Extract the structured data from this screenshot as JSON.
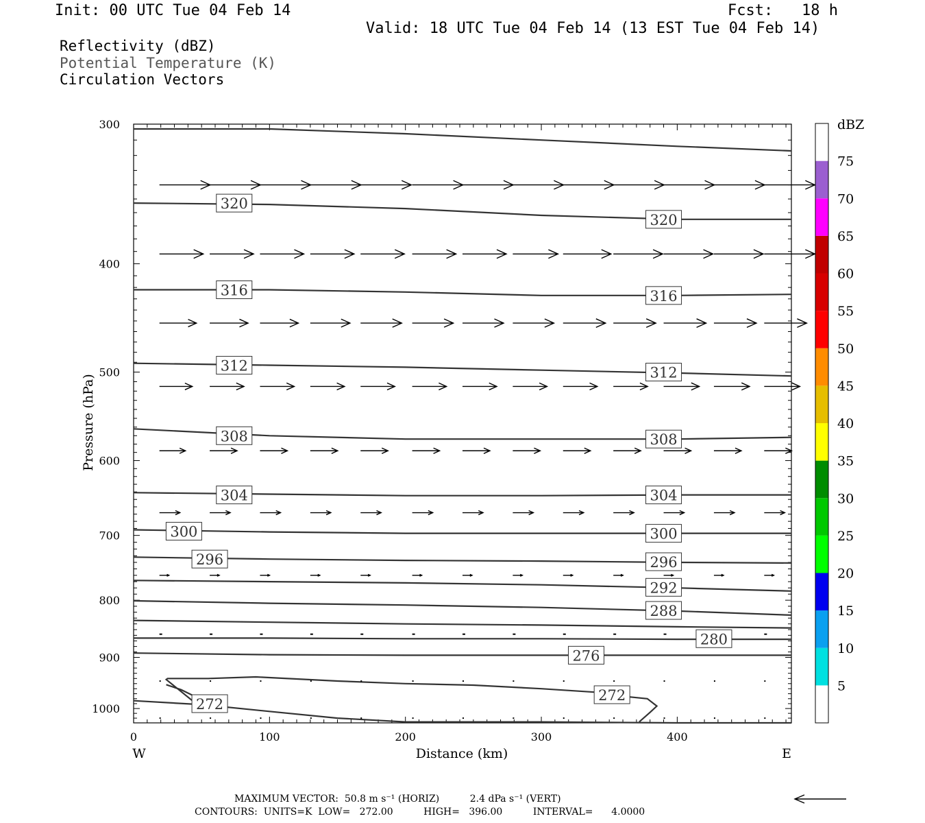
{
  "header": {
    "init": "Init: 00 UTC Tue 04 Feb 14",
    "fcst_label": "Fcst:",
    "fcst_value": "18 h",
    "valid": "Valid: 18 UTC Tue 04 Feb 14 (13 EST Tue 04 Feb 14)"
  },
  "legend": {
    "line1": "Reflectivity (dBZ)",
    "line2": "Potential Temperature (K)",
    "line3": "Circulation Vectors"
  },
  "footer": {
    "line1": "MAXIMUM VECTOR:  50.8 m s⁻¹ (HORIZ)          2.4 dPa s⁻¹ (VERT)",
    "line2": "CONTOURS:  UNITS=K  LOW=   272.00          HIGH=   396.00          INTERVAL=      4.0000"
  },
  "chart_data": {
    "type": "line",
    "xlabel": "Distance (km)",
    "ylabel": "Pressure (hPa)",
    "xlim": [
      0,
      484
    ],
    "ylim": [
      1030,
      300
    ],
    "y_scale": "log",
    "x_ticks": [
      0,
      100,
      200,
      300,
      400
    ],
    "y_ticks": [
      300,
      400,
      500,
      600,
      700,
      800,
      900,
      1000
    ],
    "x_end_labels": {
      "left": "W",
      "right": "E"
    },
    "line_color": "#333333",
    "isentropes": [
      {
        "level": "",
        "points": [
          [
            0,
            303
          ],
          [
            100,
            303
          ],
          [
            200,
            306
          ],
          [
            300,
            310
          ],
          [
            400,
            314
          ],
          [
            484,
            317
          ]
        ]
      },
      {
        "level": "320",
        "points": [
          [
            0,
            353
          ],
          [
            100,
            354
          ],
          [
            200,
            357
          ],
          [
            300,
            362
          ],
          [
            400,
            365
          ],
          [
            484,
            365
          ]
        ]
      },
      {
        "level": "316",
        "points": [
          [
            0,
            422
          ],
          [
            100,
            422
          ],
          [
            200,
            424
          ],
          [
            300,
            427
          ],
          [
            400,
            427
          ],
          [
            484,
            426
          ]
        ]
      },
      {
        "level": "312",
        "points": [
          [
            0,
            491
          ],
          [
            100,
            493
          ],
          [
            200,
            495
          ],
          [
            300,
            498
          ],
          [
            400,
            501
          ],
          [
            484,
            504
          ]
        ]
      },
      {
        "level": "308",
        "points": [
          [
            0,
            562
          ],
          [
            100,
            570
          ],
          [
            200,
            574
          ],
          [
            300,
            574
          ],
          [
            400,
            574
          ],
          [
            484,
            572
          ]
        ]
      },
      {
        "level": "304",
        "points": [
          [
            0,
            641
          ],
          [
            100,
            643
          ],
          [
            200,
            645
          ],
          [
            300,
            645
          ],
          [
            400,
            644
          ],
          [
            484,
            644
          ]
        ]
      },
      {
        "level": "300",
        "points": [
          [
            0,
            692
          ],
          [
            100,
            695
          ],
          [
            200,
            697
          ],
          [
            300,
            697
          ],
          [
            400,
            697
          ],
          [
            484,
            697
          ]
        ]
      },
      {
        "level": "296",
        "points": [
          [
            0,
            732
          ],
          [
            100,
            735
          ],
          [
            200,
            737
          ],
          [
            300,
            738
          ],
          [
            400,
            740
          ],
          [
            484,
            741
          ]
        ]
      },
      {
        "level": "292",
        "points": [
          [
            0,
            768
          ],
          [
            100,
            770
          ],
          [
            200,
            772
          ],
          [
            300,
            775
          ],
          [
            400,
            780
          ],
          [
            484,
            785
          ]
        ]
      },
      {
        "level": "288",
        "points": [
          [
            0,
            801
          ],
          [
            100,
            805
          ],
          [
            200,
            808
          ],
          [
            300,
            812
          ],
          [
            400,
            818
          ],
          [
            484,
            825
          ]
        ]
      },
      {
        "level": "",
        "points": [
          [
            0,
            834
          ],
          [
            100,
            837
          ],
          [
            200,
            840
          ],
          [
            300,
            842
          ],
          [
            400,
            845
          ],
          [
            484,
            847
          ]
        ]
      },
      {
        "level": "280",
        "points": [
          [
            0,
            865
          ],
          [
            100,
            865
          ],
          [
            200,
            866
          ],
          [
            300,
            866
          ],
          [
            400,
            867
          ],
          [
            484,
            867
          ]
        ]
      },
      {
        "level": "276",
        "points": [
          [
            0,
            892
          ],
          [
            100,
            895
          ],
          [
            200,
            896
          ],
          [
            300,
            896
          ],
          [
            400,
            896
          ],
          [
            484,
            896
          ]
        ]
      },
      {
        "level": "272",
        "points": [
          [
            0,
            984
          ],
          [
            50,
            992
          ],
          [
            100,
            1006
          ],
          [
            150,
            1020
          ],
          [
            200,
            1028
          ],
          [
            300,
            1028
          ],
          [
            400,
            1030
          ],
          [
            484,
            1030
          ]
        ]
      },
      {
        "level": "272",
        "points": [
          [
            24,
            952
          ],
          [
            35,
            962
          ],
          [
            44,
            974
          ],
          [
            50,
            986
          ],
          [
            45,
            988
          ],
          [
            24,
            942
          ],
          [
            25,
            940
          ],
          [
            55,
            940
          ],
          [
            90,
            937
          ],
          [
            150,
            945
          ],
          [
            200,
            950
          ],
          [
            250,
            953
          ],
          [
            300,
            960
          ],
          [
            340,
            967
          ],
          [
            360,
            975
          ],
          [
            378,
            980
          ],
          [
            385,
            995
          ],
          [
            380,
            1008
          ],
          [
            372,
            1028
          ]
        ]
      }
    ],
    "label_positions": [
      {
        "label": "320",
        "x": 74,
        "p": 353
      },
      {
        "label": "320",
        "x": 390,
        "p": 365
      },
      {
        "label": "316",
        "x": 74,
        "p": 422
      },
      {
        "label": "316",
        "x": 390,
        "p": 427
      },
      {
        "label": "312",
        "x": 74,
        "p": 493
      },
      {
        "label": "312",
        "x": 390,
        "p": 500
      },
      {
        "label": "308",
        "x": 74,
        "p": 570
      },
      {
        "label": "308",
        "x": 390,
        "p": 574
      },
      {
        "label": "304",
        "x": 74,
        "p": 644
      },
      {
        "label": "304",
        "x": 390,
        "p": 644
      },
      {
        "label": "300",
        "x": 37,
        "p": 694
      },
      {
        "label": "300",
        "x": 390,
        "p": 697
      },
      {
        "label": "296",
        "x": 56,
        "p": 735
      },
      {
        "label": "296",
        "x": 390,
        "p": 739
      },
      {
        "label": "292",
        "x": 390,
        "p": 779
      },
      {
        "label": "288",
        "x": 390,
        "p": 817
      },
      {
        "label": "280",
        "x": 427,
        "p": 866
      },
      {
        "label": "276",
        "x": 333,
        "p": 896
      },
      {
        "label": "272",
        "x": 56,
        "p": 990
      },
      {
        "label": "272",
        "x": 352,
        "p": 972
      }
    ],
    "vectors": {
      "x": [
        19,
        56,
        93,
        130,
        167,
        205,
        242,
        279,
        316,
        353,
        390,
        427,
        464
      ],
      "rows": [
        {
          "p": 340,
          "len": [
            37,
            37,
            37,
            37,
            37,
            37,
            37,
            37,
            37,
            37,
            37,
            37,
            37
          ]
        },
        {
          "p": 392,
          "len": [
            32,
            32,
            32,
            32,
            32,
            32,
            32,
            33,
            35,
            36,
            36,
            36,
            37
          ]
        },
        {
          "p": 452,
          "len": [
            27,
            28,
            28,
            29,
            30,
            30,
            30,
            30,
            31,
            31,
            31,
            31,
            31
          ]
        },
        {
          "p": 515,
          "len": [
            24,
            25,
            25,
            25,
            25,
            25,
            25,
            25,
            25,
            25,
            26,
            26,
            26
          ]
        },
        {
          "p": 588,
          "len": [
            19,
            20,
            20,
            20,
            20,
            20,
            20,
            20,
            20,
            20,
            20,
            20,
            20
          ]
        },
        {
          "p": 668,
          "len": [
            15,
            15,
            15,
            15,
            15,
            15,
            15,
            15,
            15,
            15,
            15,
            15,
            15
          ]
        },
        {
          "p": 760,
          "len": [
            7,
            7,
            7,
            7,
            7,
            7,
            7,
            7,
            7,
            7,
            7,
            7,
            7
          ]
        },
        {
          "p": 858,
          "len": [
            2,
            2,
            2,
            2,
            2,
            2,
            2,
            2,
            2,
            2,
            2,
            2,
            2
          ]
        },
        {
          "p": 945,
          "len": [
            1,
            1,
            1,
            1,
            1,
            1,
            1,
            1,
            1,
            1,
            1,
            1,
            1
          ]
        },
        {
          "p": 1020,
          "len": [
            1,
            1,
            1,
            1,
            1,
            1,
            1,
            1,
            1,
            1,
            1,
            1,
            1
          ]
        }
      ]
    },
    "colorbar": {
      "title": "dBZ",
      "labels": [
        "5",
        "10",
        "15",
        "20",
        "25",
        "30",
        "35",
        "40",
        "45",
        "50",
        "55",
        "60",
        "65",
        "70",
        "75"
      ],
      "colors": [
        "#ffffff",
        "#00e0e0",
        "#0aa0f0",
        "#0000f0",
        "#00ff00",
        "#00c800",
        "#008c00",
        "#ffff00",
        "#e6be00",
        "#ff8c00",
        "#ff0000",
        "#d70000",
        "#c00000",
        "#ff00ff",
        "#9b5fd0",
        "#ffffff"
      ]
    }
  }
}
